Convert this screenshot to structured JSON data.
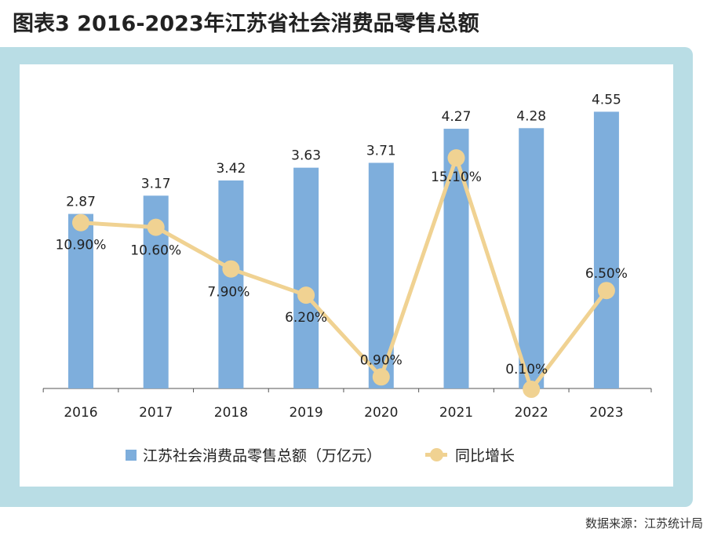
{
  "title": "图表3  2016-2023年江苏省社会消费品零售总额",
  "source": "数据来源：江苏统计局",
  "chart_data": {
    "type": "bar+line",
    "categories": [
      "2016",
      "2017",
      "2018",
      "2019",
      "2020",
      "2021",
      "2022",
      "2023"
    ],
    "series": [
      {
        "name": "江苏社会消费品零售总额（万亿元）",
        "type": "bar",
        "axis": "left",
        "color": "#7eaedc",
        "values": [
          2.87,
          3.17,
          3.42,
          3.63,
          3.71,
          4.27,
          4.28,
          4.55
        ],
        "labels": [
          "2.87",
          "3.17",
          "3.42",
          "3.63",
          "3.71",
          "4.27",
          "4.28",
          "4.55"
        ]
      },
      {
        "name": "同比增长",
        "type": "line",
        "axis": "right",
        "color": "#f0d292",
        "values": [
          10.9,
          10.6,
          7.9,
          6.2,
          0.9,
          15.1,
          0.1,
          6.5
        ],
        "labels": [
          "10.90%",
          "10.60%",
          "7.90%",
          "6.20%",
          "0.90%",
          "15.10%",
          "0.10%",
          "6.50%"
        ]
      }
    ],
    "ylim": [
      0,
      5.2
    ],
    "y2lim": [
      0,
      20.5
    ],
    "grid": false,
    "legend": "bottom"
  }
}
